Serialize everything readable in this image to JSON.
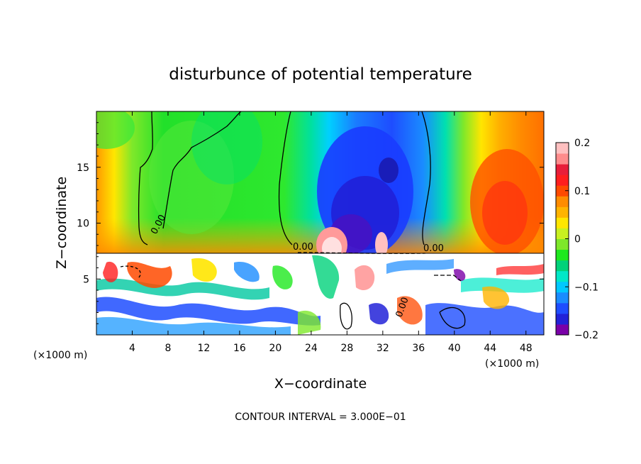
{
  "chart_data": {
    "type": "heatmap",
    "title": "disturbunce of potential temperature",
    "xlabel": "X−coordinate",
    "ylabel": "Z−coordinate",
    "x_unit_left": "(×1000 m)",
    "x_unit_right": "(×1000 m)",
    "xlim": [
      0,
      50
    ],
    "ylim": [
      0,
      20
    ],
    "x_ticks": [
      4,
      8,
      12,
      16,
      20,
      24,
      28,
      32,
      36,
      40,
      44,
      48
    ],
    "y_ticks": [
      5,
      10,
      15
    ],
    "contour_interval_text": "CONTOUR INTERVAL = 3.000E−01",
    "contour_labels": [
      "0.00",
      "0.00",
      "0.00",
      "0.00"
    ],
    "colorbar": {
      "min": -0.2,
      "max": 0.2,
      "tick_values": [
        0.2,
        0.1,
        0,
        -0.1,
        -0.2
      ],
      "tick_labels": [
        "0.2",
        "0.1",
        "0",
        "−0.1",
        "−0.2"
      ],
      "colors": [
        "#7a00a8",
        "#2222d8",
        "#1e4dff",
        "#1a8cff",
        "#00c8ff",
        "#00e8c8",
        "#00d27a",
        "#1ee81e",
        "#7ee82a",
        "#c8f020",
        "#ffe600",
        "#ffb400",
        "#ff8c00",
        "#ff4a00",
        "#ff1e1e",
        "#e81e3a",
        "#ff8c8c",
        "#ffc0c0"
      ]
    },
    "field": [
      {
        "x": 3,
        "z": 12,
        "value": 0.04
      },
      {
        "x": 10,
        "z": 15,
        "value": 0.02
      },
      {
        "x": 16,
        "z": 12,
        "value": 0.01
      },
      {
        "x": 21,
        "z": 17,
        "value": 0.0
      },
      {
        "x": 25,
        "z": 14,
        "value": -0.07
      },
      {
        "x": 30,
        "z": 14,
        "value": -0.14
      },
      {
        "x": 32,
        "z": 10,
        "value": -0.17
      },
      {
        "x": 36,
        "z": 13,
        "value": -0.04
      },
      {
        "x": 41,
        "z": 14,
        "value": 0.07
      },
      {
        "x": 46,
        "z": 13,
        "value": 0.14
      },
      {
        "x": 27,
        "z": 9,
        "value": 0.2
      }
    ]
  }
}
